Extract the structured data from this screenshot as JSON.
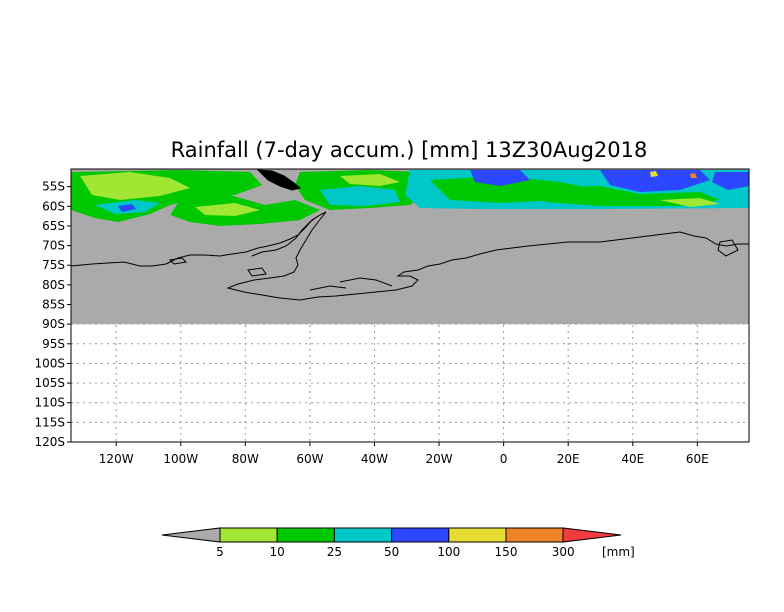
{
  "map": {
    "title": "Rainfall (7-day accum.) [mm] 13Z30Aug2018",
    "lat_labels": [
      "55S",
      "60S",
      "65S",
      "70S",
      "75S",
      "80S",
      "85S",
      "90S",
      "95S",
      "100S",
      "105S",
      "110S",
      "115S",
      "120S"
    ],
    "lon_labels": [
      "120W",
      "100W",
      "80W",
      "60W",
      "40W",
      "20W",
      "0",
      "20E",
      "40E",
      "60E"
    ],
    "lat_values": [
      -55,
      -60,
      -65,
      -70,
      -75,
      -80,
      -85,
      -90,
      -95,
      -100,
      -105,
      -110,
      -115,
      -120
    ],
    "lon_values": [
      -120,
      -100,
      -80,
      -60,
      -40,
      -20,
      0,
      20,
      40,
      60
    ],
    "lon_range": [
      -134,
      76
    ],
    "lat_range": [
      -50.5,
      -120
    ],
    "data_lat_extent": [
      -50.5,
      -90
    ],
    "no_data_color": "#aaaaaa",
    "grid": true
  },
  "colorbar": {
    "unit": "[mm]",
    "labels": [
      "5",
      "10",
      "25",
      "50",
      "100",
      "150",
      "300"
    ],
    "below_color": "#aaaaaa",
    "above_color": "#f03c3c",
    "colors": [
      "#a0e632",
      "#00c800",
      "#00c8c8",
      "#2d46ff",
      "#e6dc32",
      "#f08228"
    ]
  }
}
